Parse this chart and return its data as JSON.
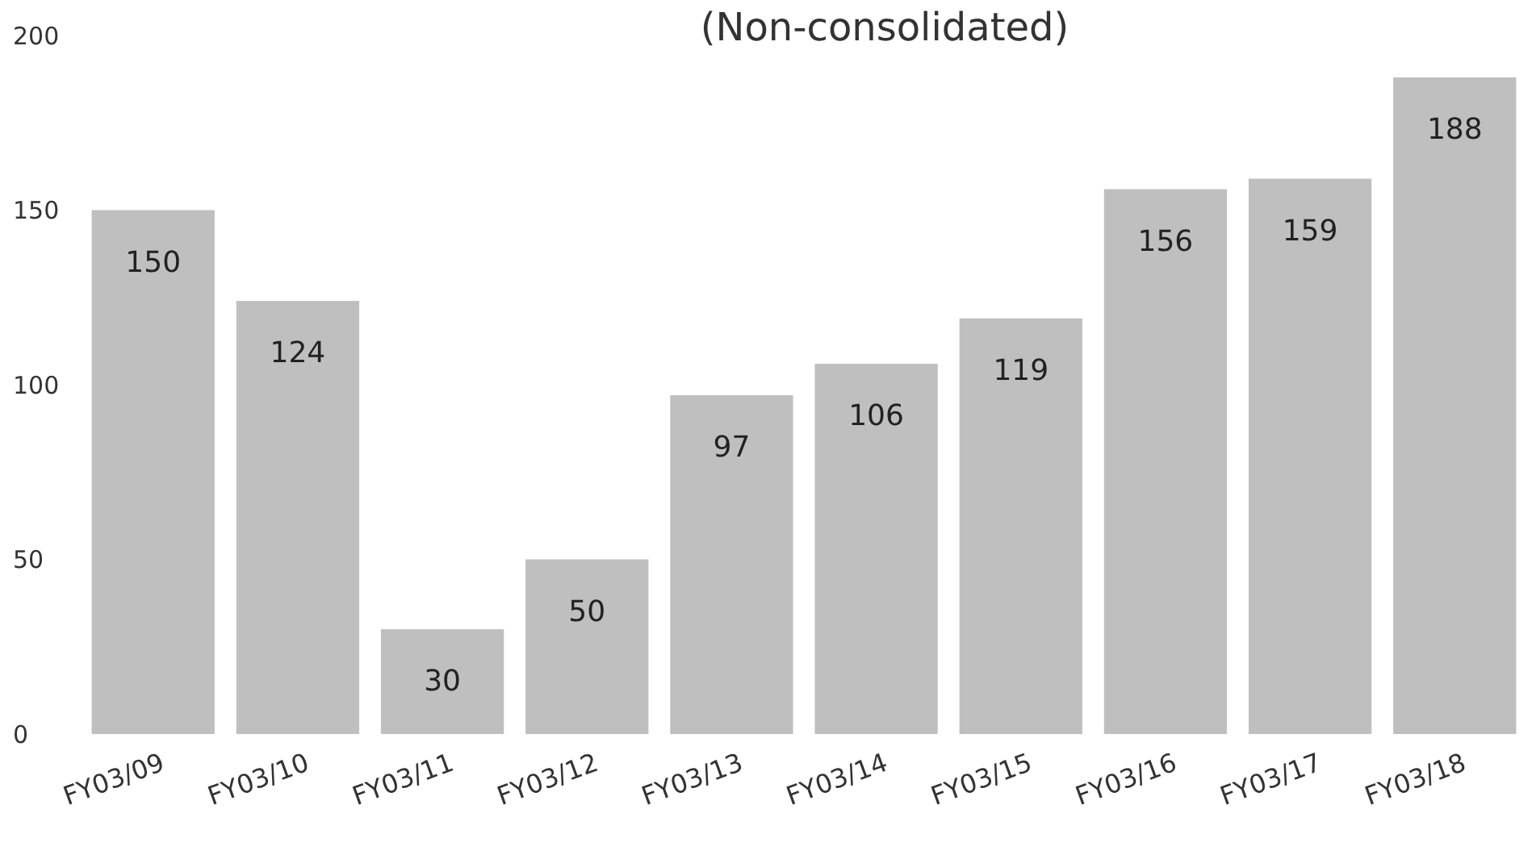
{
  "chart_data": {
    "type": "bar",
    "title": "(Non-consolidated)",
    "categories": [
      "FY03/09",
      "FY03/10",
      "FY03/11",
      "FY03/12",
      "FY03/13",
      "FY03/14",
      "FY03/15",
      "FY03/16",
      "FY03/17",
      "FY03/18"
    ],
    "values": [
      150,
      124,
      30,
      50,
      97,
      106,
      119,
      156,
      159,
      188
    ],
    "color": "#bfbfbf",
    "ylim": [
      0,
      200
    ],
    "yticks": [
      0,
      50,
      100,
      150,
      200
    ],
    "grid": false,
    "data_labels": true
  }
}
